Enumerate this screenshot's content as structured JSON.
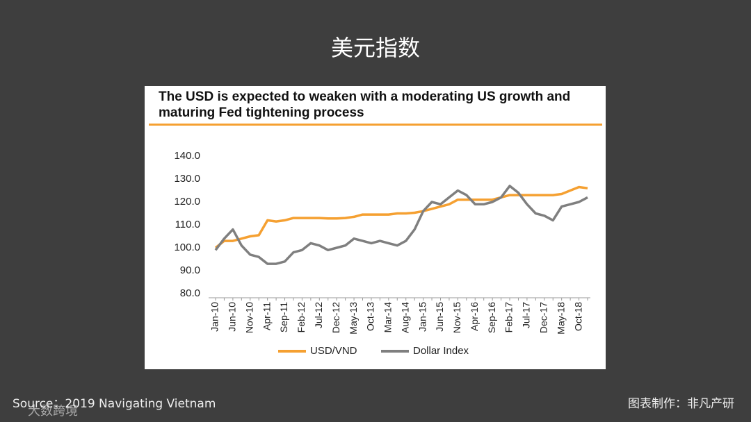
{
  "header": {
    "title": "美元指数"
  },
  "chart_data": {
    "type": "line",
    "title": "The USD is expected to weaken with a moderating US growth and maturing Fed tightening process",
    "categories": [
      "Jan-10",
      null,
      "Jun-10",
      null,
      "Nov-10",
      null,
      "Apr-11",
      null,
      "Sep-11",
      null,
      "Feb-12",
      null,
      "Jul-12",
      null,
      "Dec-12",
      null,
      "May-13",
      null,
      "Oct-13",
      null,
      "Mar-14",
      null,
      "Aug-14",
      null,
      "Jan-15",
      null,
      "Jun-15",
      null,
      "Nov-15",
      null,
      "Apr-16",
      null,
      "Sep-16",
      null,
      "Feb-17",
      null,
      "Jul-17",
      null,
      "Dec-17",
      null,
      "May-18",
      null,
      "Oct-18",
      null
    ],
    "series": [
      {
        "name": "USD/VND",
        "color": "#f5a031",
        "values": [
          100,
          103,
          103,
          104,
          105,
          105.5,
          112,
          111.5,
          112,
          113,
          113,
          113,
          113,
          112.8,
          112.8,
          113,
          113.5,
          114.5,
          114.5,
          114.5,
          114.5,
          115,
          115,
          115.3,
          116,
          117,
          118,
          119,
          121,
          121,
          121,
          121,
          121,
          122,
          123,
          123,
          123,
          123,
          123,
          123,
          123.5,
          125,
          126.5,
          126
        ]
      },
      {
        "name": "Dollar Index",
        "color": "#7f7f7f",
        "values": [
          99,
          104,
          108,
          101,
          97,
          96,
          93,
          93,
          94,
          98,
          99,
          102,
          101,
          99,
          100,
          101,
          104,
          103,
          102,
          103,
          102,
          101,
          103,
          108,
          116,
          120,
          119,
          122,
          125,
          123,
          119,
          119,
          120,
          122,
          127,
          124,
          119,
          115,
          114,
          112,
          118,
          119,
          120,
          122
        ]
      }
    ],
    "ylim": [
      80,
      140
    ],
    "yticks": [
      {
        "value": 80,
        "label": "80.0"
      },
      {
        "value": 90,
        "label": "90.0"
      },
      {
        "value": 100,
        "label": "100.0"
      },
      {
        "value": 110,
        "label": "110.0"
      },
      {
        "value": 120,
        "label": "120.0"
      },
      {
        "value": 130,
        "label": "130.0"
      },
      {
        "value": 140,
        "label": "140.0"
      }
    ],
    "grid": false,
    "legend": "bottom"
  },
  "footer": {
    "source": "Source：2019 Navigating Vietnam",
    "credit": "图表制作：非凡产研",
    "watermark": "大数跨境"
  }
}
